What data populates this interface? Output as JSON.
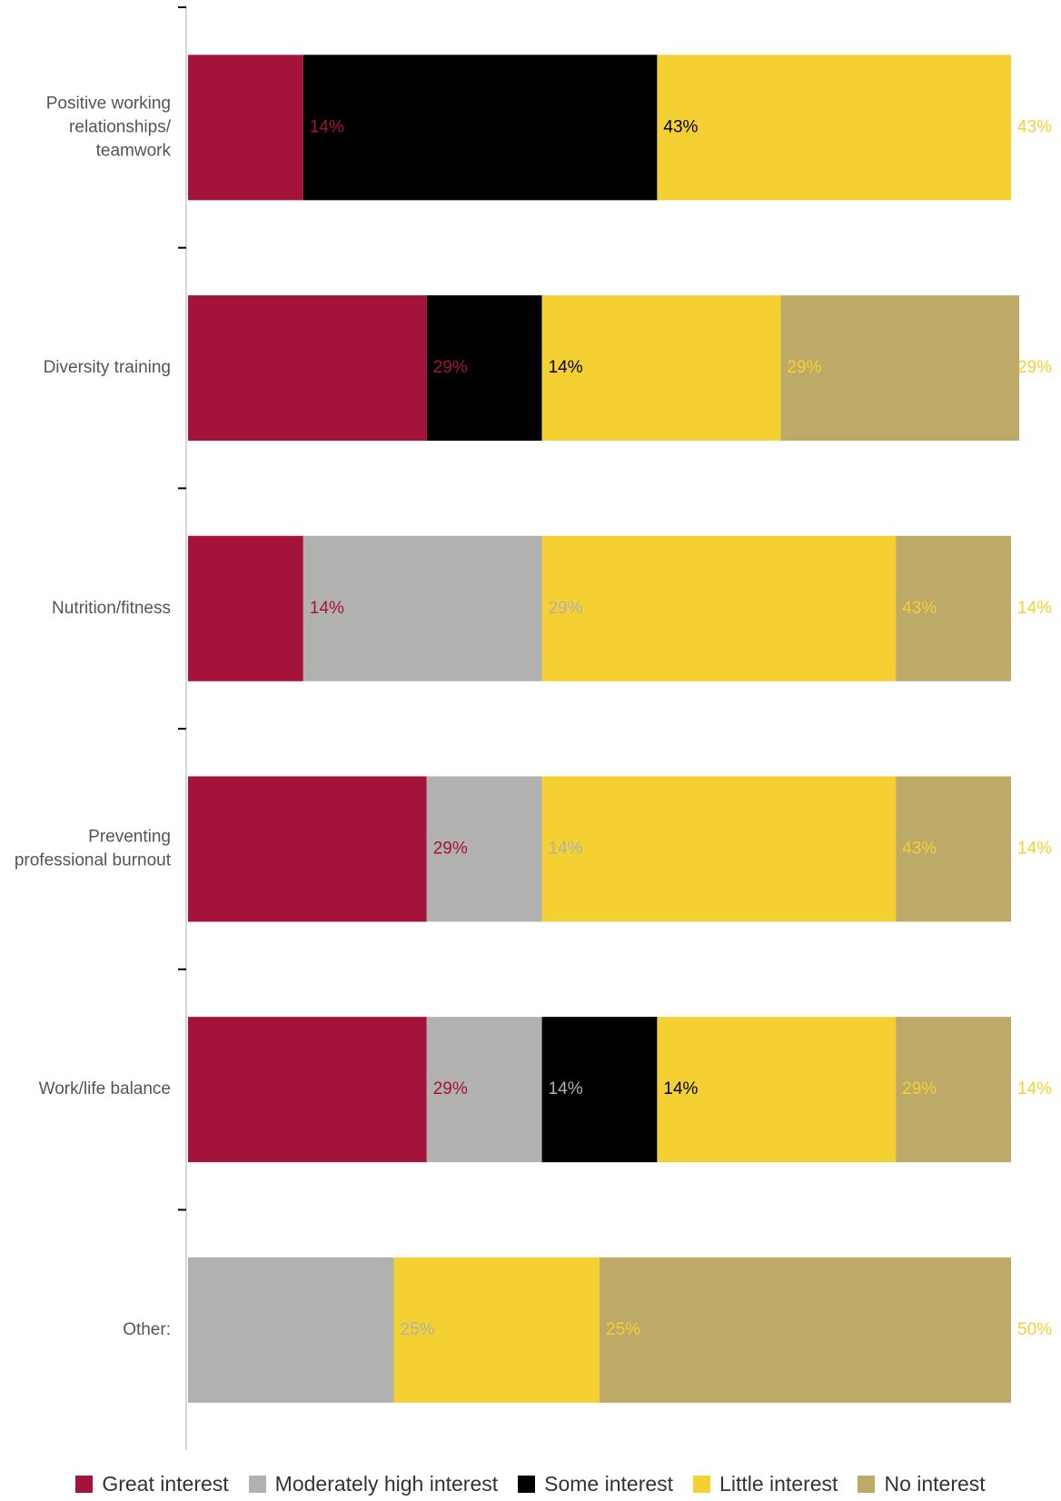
{
  "chart_data": {
    "type": "bar",
    "orientation": "horizontal",
    "stacked": true,
    "categories": [
      "Positive working relationships/ teamwork",
      "Diversity training",
      "Nutrition/fitness",
      "Preventing professional burnout",
      "Work/life balance",
      "Other:"
    ],
    "category_lines": [
      [
        "Positive working",
        "relationships/",
        "teamwork"
      ],
      [
        "Diversity training"
      ],
      [
        "Nutrition/fitness"
      ],
      [
        "Preventing",
        "professional burnout"
      ],
      [
        "Work/life balance"
      ],
      [
        "Other:"
      ]
    ],
    "series": [
      {
        "name": "Great interest",
        "color": "#A4133C",
        "values": [
          14,
          29,
          14,
          29,
          29,
          0
        ]
      },
      {
        "name": "Moderately high interest",
        "color": "#B1B2AF",
        "values": [
          0,
          0,
          29,
          14,
          14,
          25
        ]
      },
      {
        "name": "Some interest",
        "color": "#000000",
        "values": [
          43,
          14,
          0,
          0,
          14,
          0
        ]
      },
      {
        "name": "Little interest",
        "color": "#F5D033",
        "values": [
          43,
          29,
          43,
          43,
          29,
          25
        ]
      },
      {
        "name": "No interest",
        "color": "#BDAA68",
        "values": [
          0,
          29,
          14,
          14,
          14,
          50
        ]
      }
    ],
    "value_labels": [
      [
        "14%",
        "43%",
        "43%"
      ],
      [
        "29%",
        "14%",
        "29%",
        "29%"
      ],
      [
        "14%",
        "29%",
        "43%",
        "14%"
      ],
      [
        "29%",
        "14%",
        "43%",
        "14%"
      ],
      [
        "29%",
        "14%",
        "14%",
        "29%",
        "14%"
      ],
      [
        "25%",
        "25%",
        "50%"
      ]
    ],
    "xlim": [
      0,
      100
    ],
    "unit": "%",
    "legend_position": "bottom",
    "grid": false
  }
}
